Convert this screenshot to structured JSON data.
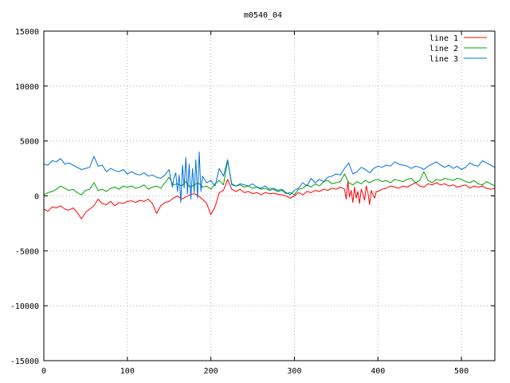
{
  "chart_data": {
    "type": "line",
    "title": "m0540_04",
    "xlabel": "",
    "ylabel": "",
    "xlim": [
      0,
      540
    ],
    "ylim": [
      -15000,
      15000
    ],
    "x_ticks": [
      0,
      100,
      200,
      300,
      400,
      500
    ],
    "y_ticks": [
      -15000,
      -10000,
      -5000,
      0,
      5000,
      10000,
      15000
    ],
    "grid": true,
    "legend_position": "top-right",
    "series": [
      {
        "name": "line 1",
        "color": "#ff0000",
        "x": [
          0,
          5,
          10,
          15,
          20,
          25,
          30,
          35,
          40,
          45,
          50,
          55,
          60,
          65,
          70,
          75,
          80,
          85,
          90,
          95,
          100,
          105,
          110,
          115,
          120,
          125,
          130,
          135,
          140,
          145,
          150,
          155,
          160,
          165,
          170,
          175,
          180,
          185,
          190,
          195,
          200,
          205,
          210,
          215,
          220,
          225,
          230,
          235,
          240,
          245,
          250,
          255,
          260,
          265,
          270,
          275,
          280,
          285,
          290,
          295,
          300,
          305,
          310,
          315,
          320,
          325,
          330,
          335,
          340,
          345,
          350,
          355,
          360,
          362,
          364,
          366,
          368,
          370,
          372,
          374,
          376,
          378,
          380,
          382,
          384,
          386,
          388,
          390,
          392,
          394,
          396,
          398,
          400,
          405,
          410,
          415,
          420,
          425,
          430,
          435,
          440,
          445,
          450,
          455,
          460,
          465,
          470,
          475,
          480,
          485,
          490,
          495,
          500,
          505,
          510,
          515,
          520,
          525,
          530,
          535,
          540
        ],
        "y": [
          -1200,
          -1400,
          -1000,
          -1100,
          -900,
          -1200,
          -1300,
          -1100,
          -1500,
          -2100,
          -1500,
          -1200,
          -900,
          -300,
          -700,
          -800,
          -500,
          -900,
          -600,
          -700,
          -500,
          -450,
          -600,
          -400,
          -500,
          -300,
          -700,
          -1600,
          -900,
          -600,
          -500,
          -200,
          0,
          -300,
          -100,
          100,
          200,
          0,
          -300,
          -700,
          -1700,
          -1000,
          300,
          500,
          1500,
          600,
          400,
          600,
          300,
          400,
          200,
          300,
          100,
          300,
          200,
          250,
          150,
          100,
          0,
          -200,
          0,
          300,
          100,
          400,
          300,
          500,
          400,
          600,
          500,
          700,
          600,
          800,
          600,
          -300,
          1300,
          -100,
          500,
          -600,
          800,
          -200,
          400,
          -700,
          600,
          200,
          -400,
          900,
          300,
          -800,
          500,
          100,
          -200,
          400,
          400,
          600,
          700,
          900,
          800,
          700,
          900,
          800,
          1000,
          1200,
          900,
          800,
          1100,
          1000,
          1200,
          1000,
          1100,
          900,
          1000,
          800,
          900,
          1000,
          700,
          900,
          800,
          900,
          700,
          600,
          700
        ]
      },
      {
        "name": "line 2",
        "color": "#00a000",
        "x": [
          0,
          5,
          10,
          15,
          20,
          25,
          30,
          35,
          40,
          45,
          50,
          55,
          60,
          65,
          70,
          75,
          80,
          85,
          90,
          95,
          100,
          105,
          110,
          115,
          120,
          125,
          130,
          135,
          140,
          145,
          150,
          155,
          160,
          165,
          170,
          175,
          180,
          185,
          190,
          195,
          200,
          205,
          210,
          215,
          220,
          225,
          230,
          235,
          240,
          245,
          250,
          255,
          260,
          265,
          270,
          275,
          280,
          285,
          290,
          295,
          300,
          305,
          310,
          315,
          320,
          325,
          330,
          335,
          340,
          345,
          350,
          355,
          360,
          365,
          370,
          375,
          380,
          385,
          390,
          395,
          400,
          405,
          410,
          415,
          420,
          425,
          430,
          435,
          440,
          445,
          450,
          455,
          460,
          465,
          470,
          475,
          480,
          485,
          490,
          495,
          500,
          505,
          510,
          515,
          520,
          525,
          530,
          535,
          540
        ],
        "y": [
          100,
          300,
          400,
          600,
          900,
          700,
          500,
          600,
          300,
          100,
          500,
          600,
          1200,
          500,
          600,
          400,
          700,
          800,
          600,
          900,
          800,
          900,
          700,
          800,
          1000,
          600,
          800,
          900,
          700,
          1200,
          1700,
          1000,
          1100,
          900,
          1300,
          800,
          1000,
          1200,
          800,
          900,
          600,
          1100,
          1400,
          1000,
          3200,
          1100,
          900,
          1000,
          800,
          900,
          700,
          800,
          600,
          700,
          500,
          600,
          400,
          500,
          200,
          300,
          100,
          600,
          700,
          1000,
          800,
          1100,
          900,
          1300,
          1400,
          1100,
          1200,
          1300,
          2000,
          1200,
          1000,
          1300,
          1100,
          1400,
          1200,
          1400,
          1500,
          1300,
          1400,
          1200,
          1500,
          1400,
          1300,
          1500,
          1600,
          1200,
          1400,
          2200,
          1400,
          1200,
          1500,
          1400,
          1600,
          1500,
          1400,
          1600,
          1500,
          1300,
          1200,
          1400,
          1100,
          1000,
          1300,
          1100,
          900
        ]
      },
      {
        "name": "line 3",
        "color": "#0070e0",
        "x": [
          0,
          5,
          10,
          15,
          20,
          25,
          30,
          35,
          40,
          45,
          50,
          55,
          60,
          65,
          70,
          75,
          80,
          85,
          90,
          95,
          100,
          105,
          110,
          115,
          120,
          125,
          130,
          135,
          140,
          145,
          150,
          152,
          154,
          156,
          158,
          160,
          162,
          164,
          166,
          168,
          170,
          172,
          174,
          176,
          178,
          180,
          182,
          184,
          186,
          188,
          190,
          195,
          200,
          205,
          210,
          215,
          220,
          225,
          230,
          235,
          240,
          245,
          250,
          255,
          260,
          265,
          270,
          275,
          280,
          285,
          290,
          295,
          300,
          305,
          310,
          315,
          320,
          325,
          330,
          335,
          340,
          345,
          350,
          355,
          360,
          365,
          370,
          375,
          380,
          385,
          390,
          395,
          400,
          405,
          410,
          415,
          420,
          425,
          430,
          435,
          440,
          445,
          450,
          455,
          460,
          465,
          470,
          475,
          480,
          485,
          490,
          495,
          500,
          505,
          510,
          515,
          520,
          525,
          530,
          535,
          540
        ],
        "y": [
          2900,
          2800,
          3200,
          3100,
          3400,
          2900,
          3000,
          2800,
          2600,
          2400,
          2500,
          2600,
          3600,
          2700,
          2800,
          2200,
          2500,
          2300,
          2200,
          2400,
          2000,
          2200,
          2000,
          1900,
          2100,
          1800,
          1900,
          1700,
          1600,
          1900,
          2400,
          1500,
          800,
          1700,
          2100,
          400,
          1900,
          -600,
          2800,
          700,
          3500,
          200,
          2900,
          -300,
          2500,
          300,
          3300,
          -200,
          4000,
          400,
          1800,
          1200,
          1400,
          900,
          2500,
          1800,
          3300,
          1000,
          900,
          1100,
          1000,
          900,
          1100,
          800,
          700,
          900,
          600,
          700,
          500,
          600,
          300,
          100,
          500,
          700,
          1200,
          900,
          1600,
          1200,
          1500,
          1300,
          1700,
          1800,
          2000,
          1900,
          2500,
          3000,
          2000,
          2200,
          2600,
          2400,
          2100,
          2500,
          2700,
          2600,
          2800,
          2700,
          3100,
          2900,
          2800,
          2700,
          2500,
          2700,
          2600,
          2400,
          2700,
          2900,
          3100,
          2800,
          2600,
          2800,
          2500,
          2700,
          2400,
          2600,
          3000,
          2800,
          2700,
          3200,
          3000,
          2800,
          2600
        ]
      }
    ]
  }
}
